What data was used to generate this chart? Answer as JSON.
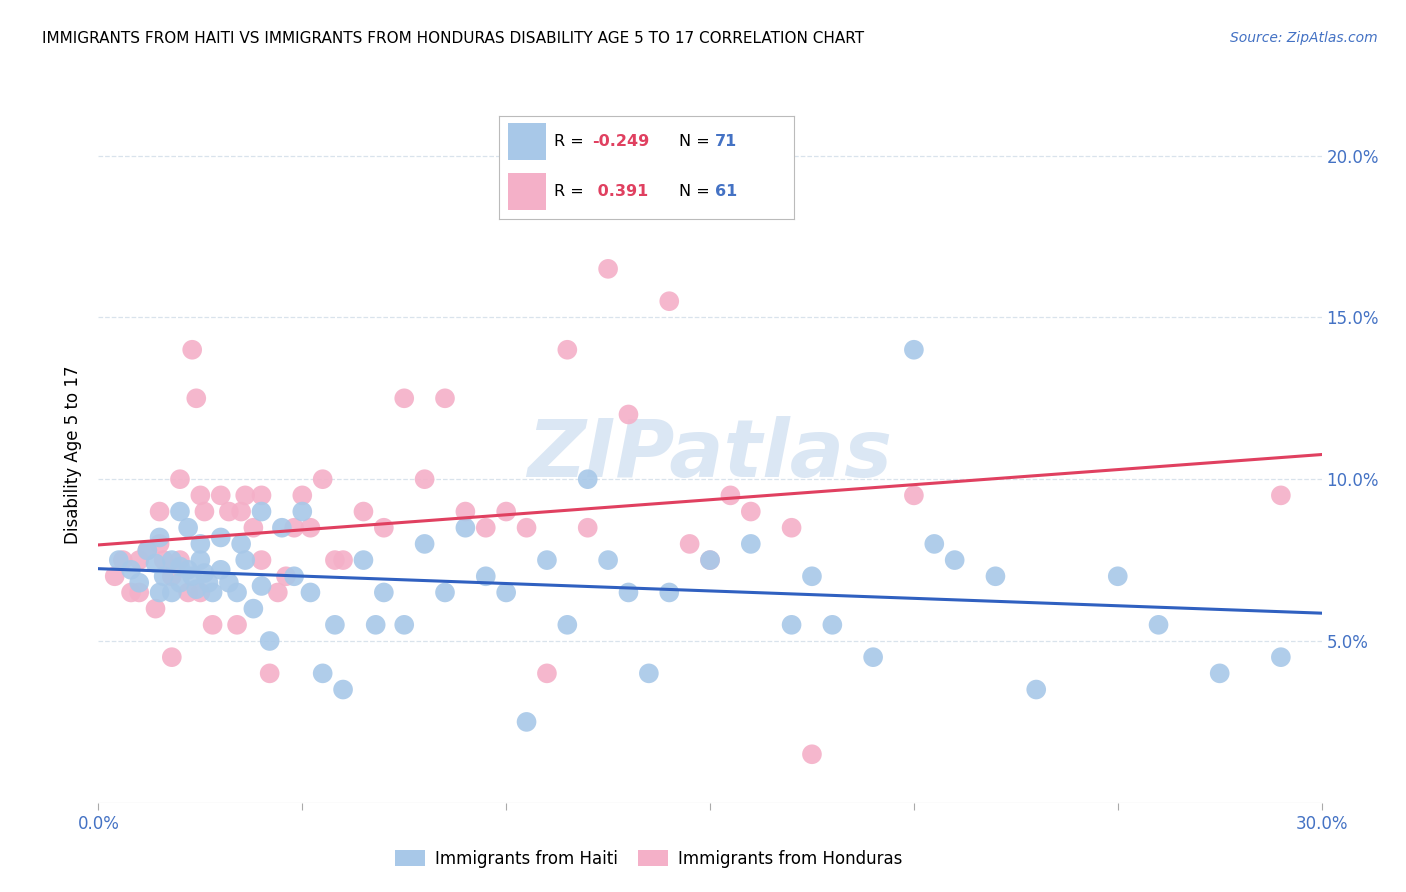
{
  "title": "IMMIGRANTS FROM HAITI VS IMMIGRANTS FROM HONDURAS DISABILITY AGE 5 TO 17 CORRELATION CHART",
  "source": "Source: ZipAtlas.com",
  "ylabel": "Disability Age 5 to 17",
  "xlim": [
    0.0,
    0.3
  ],
  "ylim": [
    0.0,
    0.215
  ],
  "yticks": [
    0.05,
    0.1,
    0.15,
    0.2
  ],
  "ytick_labels": [
    "5.0%",
    "10.0%",
    "15.0%",
    "20.0%"
  ],
  "xticks": [
    0.0,
    0.05,
    0.1,
    0.15,
    0.2,
    0.25,
    0.3
  ],
  "legend_haiti_r": "-0.249",
  "legend_haiti_n": "71",
  "legend_honduras_r": "0.391",
  "legend_honduras_n": "61",
  "haiti_color": "#a8c8e8",
  "honduras_color": "#f4b0c8",
  "haiti_line_color": "#3060c0",
  "honduras_line_color": "#e04060",
  "watermark_color": "#ccddf0",
  "haiti_x": [
    0.005,
    0.008,
    0.01,
    0.012,
    0.014,
    0.015,
    0.015,
    0.016,
    0.018,
    0.018,
    0.02,
    0.02,
    0.02,
    0.022,
    0.022,
    0.023,
    0.024,
    0.025,
    0.025,
    0.026,
    0.027,
    0.028,
    0.03,
    0.03,
    0.032,
    0.034,
    0.035,
    0.036,
    0.038,
    0.04,
    0.04,
    0.042,
    0.045,
    0.048,
    0.05,
    0.052,
    0.055,
    0.058,
    0.06,
    0.065,
    0.068,
    0.07,
    0.075,
    0.08,
    0.085,
    0.09,
    0.095,
    0.1,
    0.105,
    0.11,
    0.115,
    0.12,
    0.125,
    0.13,
    0.135,
    0.14,
    0.15,
    0.16,
    0.17,
    0.175,
    0.18,
    0.19,
    0.2,
    0.205,
    0.21,
    0.22,
    0.23,
    0.25,
    0.26,
    0.275,
    0.29
  ],
  "haiti_y": [
    0.075,
    0.072,
    0.068,
    0.078,
    0.074,
    0.082,
    0.065,
    0.07,
    0.075,
    0.065,
    0.09,
    0.073,
    0.068,
    0.085,
    0.072,
    0.07,
    0.066,
    0.08,
    0.075,
    0.071,
    0.068,
    0.065,
    0.082,
    0.072,
    0.068,
    0.065,
    0.08,
    0.075,
    0.06,
    0.09,
    0.067,
    0.05,
    0.085,
    0.07,
    0.09,
    0.065,
    0.04,
    0.055,
    0.035,
    0.075,
    0.055,
    0.065,
    0.055,
    0.08,
    0.065,
    0.085,
    0.07,
    0.065,
    0.025,
    0.075,
    0.055,
    0.1,
    0.075,
    0.065,
    0.04,
    0.065,
    0.075,
    0.08,
    0.055,
    0.07,
    0.055,
    0.045,
    0.14,
    0.08,
    0.075,
    0.07,
    0.035,
    0.07,
    0.055,
    0.04,
    0.045
  ],
  "honduras_x": [
    0.004,
    0.006,
    0.008,
    0.01,
    0.01,
    0.012,
    0.014,
    0.015,
    0.015,
    0.016,
    0.018,
    0.018,
    0.02,
    0.02,
    0.022,
    0.023,
    0.024,
    0.025,
    0.025,
    0.026,
    0.028,
    0.03,
    0.032,
    0.034,
    0.035,
    0.036,
    0.038,
    0.04,
    0.04,
    0.042,
    0.044,
    0.046,
    0.048,
    0.05,
    0.052,
    0.055,
    0.058,
    0.06,
    0.065,
    0.07,
    0.075,
    0.08,
    0.085,
    0.09,
    0.095,
    0.1,
    0.105,
    0.11,
    0.115,
    0.12,
    0.125,
    0.13,
    0.14,
    0.145,
    0.15,
    0.155,
    0.16,
    0.17,
    0.175,
    0.2,
    0.29
  ],
  "honduras_y": [
    0.07,
    0.075,
    0.065,
    0.075,
    0.065,
    0.078,
    0.06,
    0.09,
    0.08,
    0.075,
    0.07,
    0.045,
    0.1,
    0.075,
    0.065,
    0.14,
    0.125,
    0.095,
    0.065,
    0.09,
    0.055,
    0.095,
    0.09,
    0.055,
    0.09,
    0.095,
    0.085,
    0.095,
    0.075,
    0.04,
    0.065,
    0.07,
    0.085,
    0.095,
    0.085,
    0.1,
    0.075,
    0.075,
    0.09,
    0.085,
    0.125,
    0.1,
    0.125,
    0.09,
    0.085,
    0.09,
    0.085,
    0.04,
    0.14,
    0.085,
    0.165,
    0.12,
    0.155,
    0.08,
    0.075,
    0.095,
    0.09,
    0.085,
    0.015,
    0.095,
    0.095
  ]
}
